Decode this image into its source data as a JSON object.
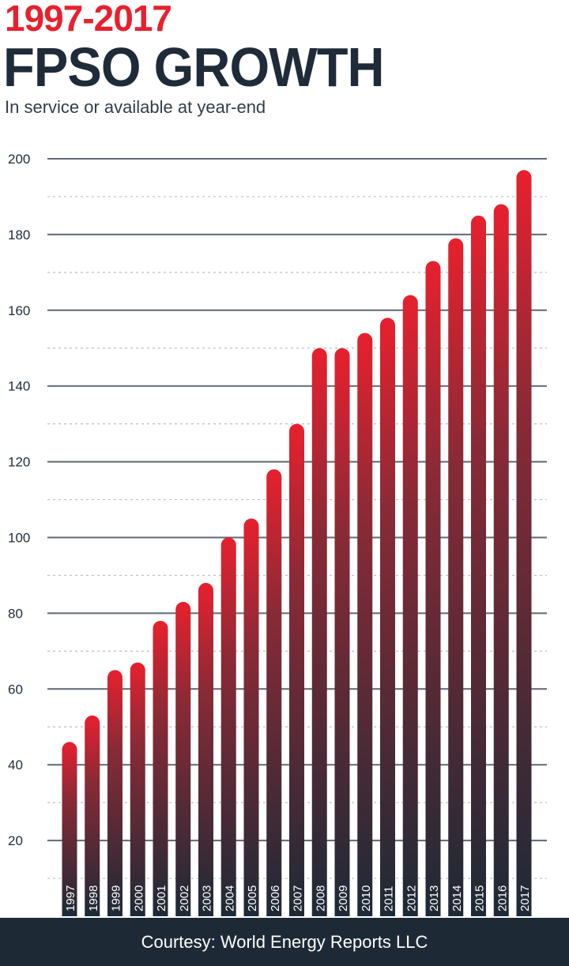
{
  "header": {
    "kicker": "1997-2017",
    "title": "FPSO GROWTH",
    "subtitle": "In service or available at year-end"
  },
  "footer": {
    "credit": "Courtesy: World Energy Reports LLC"
  },
  "colors": {
    "bar_top": "#e8202e",
    "bar_bottom": "#1d2a36",
    "gridline": "#5e6973",
    "text_dark": "#1f2b38"
  },
  "chart_data": {
    "type": "bar",
    "title": "FPSO GROWTH",
    "subtitle": "In service or available at year-end",
    "categories": [
      "1997",
      "1998",
      "1999",
      "2000",
      "2001",
      "2002",
      "2003",
      "2004",
      "2005",
      "2006",
      "2007",
      "2008",
      "2009",
      "2010",
      "2011",
      "2012",
      "2013",
      "2014",
      "2015",
      "2016",
      "2017"
    ],
    "values": [
      46,
      53,
      65,
      67,
      78,
      83,
      88,
      100,
      105,
      118,
      130,
      150,
      150,
      154,
      158,
      164,
      173,
      179,
      185,
      188,
      197
    ],
    "ylim": [
      0,
      200
    ],
    "yticks": [
      20,
      40,
      60,
      80,
      100,
      120,
      140,
      160,
      180,
      200
    ],
    "grid": true,
    "minor_grid": true,
    "xlabel": "",
    "ylabel": ""
  }
}
